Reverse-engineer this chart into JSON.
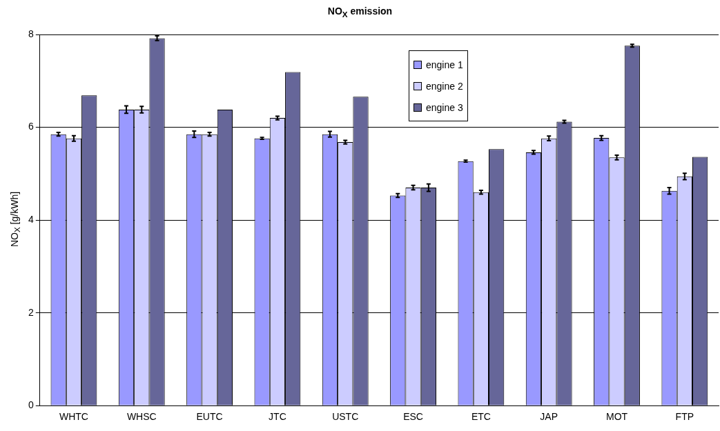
{
  "chart_data": {
    "type": "bar",
    "title": "NO$_{X}$ emission",
    "ylabel": "NO$_{X}$ [g/kWh]",
    "categories": [
      "WHTC",
      "WHSC",
      "EUTC",
      "JTC",
      "USTC",
      "ESC",
      "ETC",
      "JAP",
      "MOT",
      "FTP"
    ],
    "series": [
      {
        "name": "engine 1",
        "color": "#9999ff",
        "values": [
          5.85,
          6.38,
          5.85,
          5.76,
          5.85,
          4.53,
          5.27,
          5.46,
          5.77,
          4.63
        ],
        "errors": [
          0.04,
          0.08,
          0.07,
          0.02,
          0.06,
          0.04,
          0.02,
          0.04,
          0.05,
          0.07
        ]
      },
      {
        "name": "engine 2",
        "color": "#ccccff",
        "values": [
          5.76,
          6.38,
          5.85,
          6.2,
          5.68,
          4.7,
          4.6,
          5.76,
          5.35,
          4.94
        ],
        "errors": [
          0.06,
          0.07,
          0.04,
          0.04,
          0.04,
          0.05,
          0.04,
          0.05,
          0.05,
          0.07
        ]
      },
      {
        "name": "engine 3",
        "color": "#666699",
        "values": [
          6.69,
          7.92,
          6.38,
          7.19,
          6.66,
          4.7,
          5.53,
          6.12,
          7.76,
          5.36
        ],
        "errors": [
          null,
          0.05,
          null,
          null,
          null,
          0.08,
          null,
          0.03,
          0.03,
          null
        ]
      }
    ],
    "ylim": [
      0,
      8
    ],
    "yticks": [
      0,
      2,
      4,
      6,
      8
    ],
    "grid": "y",
    "legend": "top"
  }
}
